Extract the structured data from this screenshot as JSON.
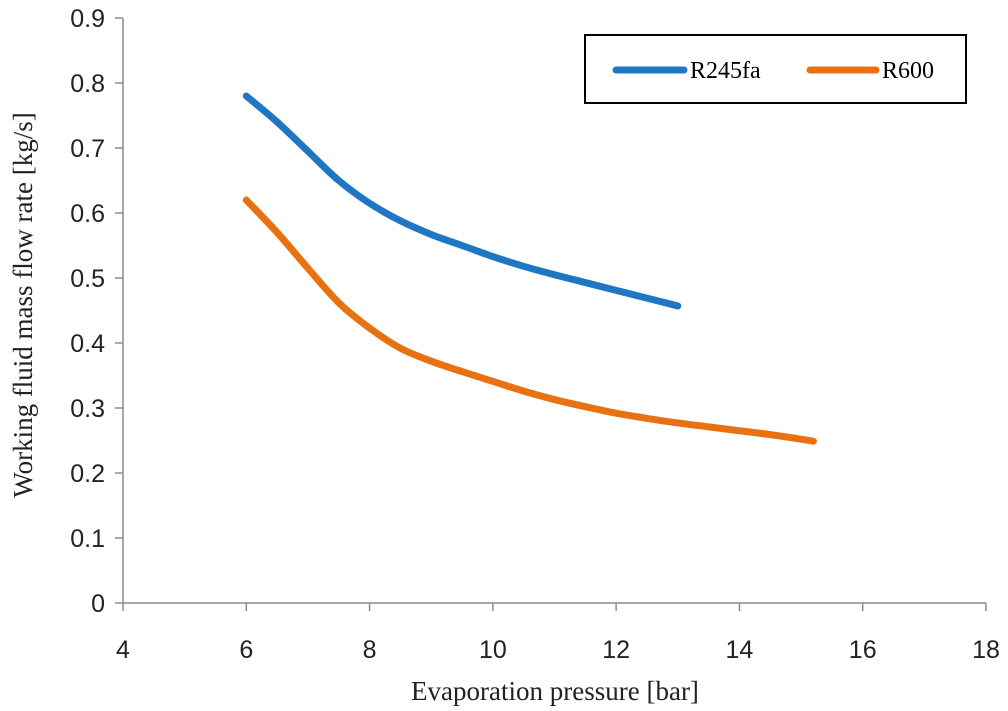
{
  "chart_data": {
    "type": "line",
    "title": "",
    "xlabel": "Evaporation pressure [bar]",
    "ylabel": "Working fluid mass flow rate [kg/s]",
    "xlim": [
      4,
      18
    ],
    "ylim": [
      0,
      0.9
    ],
    "x_ticks": [
      "4",
      "6",
      "8",
      "10",
      "12",
      "14",
      "16",
      "18"
    ],
    "y_ticks": [
      "0",
      "0.1",
      "0.2",
      "0.3",
      "0.4",
      "0.5",
      "0.6",
      "0.7",
      "0.8",
      "0.9"
    ],
    "grid": false,
    "legend_position": "top-right",
    "series": [
      {
        "name": "R245fa",
        "color": "#1f77c4",
        "points": [
          [
            6.0,
            0.78
          ],
          [
            6.5,
            0.74
          ],
          [
            7.0,
            0.695
          ],
          [
            7.5,
            0.65
          ],
          [
            8.0,
            0.615
          ],
          [
            8.5,
            0.588
          ],
          [
            9.0,
            0.567
          ],
          [
            9.5,
            0.55
          ],
          [
            10.0,
            0.533
          ],
          [
            10.5,
            0.518
          ],
          [
            11.0,
            0.505
          ],
          [
            11.5,
            0.493
          ],
          [
            12.0,
            0.481
          ],
          [
            12.5,
            0.469
          ],
          [
            13.0,
            0.457
          ]
        ]
      },
      {
        "name": "R600",
        "color": "#e87212",
        "points": [
          [
            6.0,
            0.62
          ],
          [
            6.5,
            0.57
          ],
          [
            7.0,
            0.515
          ],
          [
            7.5,
            0.462
          ],
          [
            8.0,
            0.423
          ],
          [
            8.5,
            0.392
          ],
          [
            9.0,
            0.372
          ],
          [
            9.5,
            0.356
          ],
          [
            10.0,
            0.341
          ],
          [
            10.5,
            0.326
          ],
          [
            11.0,
            0.313
          ],
          [
            11.5,
            0.302
          ],
          [
            12.0,
            0.292
          ],
          [
            12.5,
            0.284
          ],
          [
            13.0,
            0.277
          ],
          [
            13.5,
            0.271
          ],
          [
            14.0,
            0.265
          ],
          [
            14.5,
            0.259
          ],
          [
            15.0,
            0.252
          ],
          [
            15.2,
            0.249
          ]
        ]
      }
    ]
  }
}
